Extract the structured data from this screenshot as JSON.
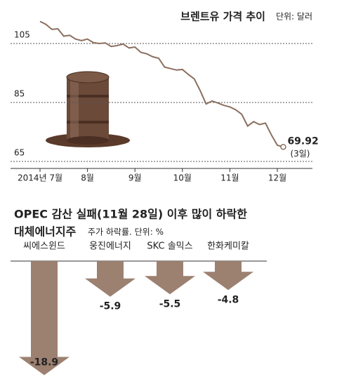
{
  "chart_data": [
    {
      "type": "line",
      "title": "브렌트유 가격 추이",
      "subtitle": "단위: 달러",
      "color": "#8b6f5e",
      "values": [
        112.5,
        111.5,
        109.8,
        110,
        107.5,
        107.8,
        106.5,
        106,
        106.5,
        105.3,
        105,
        105.2,
        104,
        104.3,
        104.8,
        103.5,
        103.8,
        102,
        101.5,
        100.5,
        100,
        97,
        96.5,
        96,
        96.2,
        94.5,
        93,
        89,
        84.5,
        85.5,
        84.8,
        84,
        83.5,
        82.5,
        81,
        77,
        78.5,
        77.5,
        78,
        74,
        70.5,
        69.92
      ],
      "value_labels": [
        null,
        null,
        null,
        null,
        null,
        null,
        null,
        null,
        null,
        null,
        null,
        null,
        null,
        null,
        null,
        null,
        null,
        null,
        null,
        null,
        null,
        null,
        null,
        null,
        null,
        null,
        null,
        null,
        null,
        null,
        null,
        null,
        null,
        null,
        null,
        null,
        null,
        null,
        null,
        null,
        null,
        "69.92"
      ],
      "annotation": "(3일)",
      "xlim": [
        0,
        40
      ],
      "xticks": [
        {
          "value": 0,
          "label": "2014년 7월"
        },
        {
          "value": 8,
          "label": "8월"
        },
        {
          "value": 16,
          "label": "9월"
        },
        {
          "value": 24,
          "label": "10월"
        },
        {
          "value": 32,
          "label": "11월"
        },
        {
          "value": 40,
          "label": "12월"
        }
      ],
      "ylim": [
        65,
        105
      ],
      "yticks": [
        65,
        85,
        105
      ],
      "grid": true
    },
    {
      "type": "arrow-bar",
      "title": "OPEC 감산 실패(11월 28일) 이후 많이 하락한",
      "title_line2": "대체에너지주",
      "subtitle": "주가 하락률. 단위: %",
      "color": "#9c8070",
      "categories": [
        "씨에스윈드",
        "웅진에너지",
        "SKC 솔믹스",
        "한화케미칼"
      ],
      "values": [
        -18.9,
        -5.9,
        -5.5,
        -4.8
      ]
    }
  ]
}
